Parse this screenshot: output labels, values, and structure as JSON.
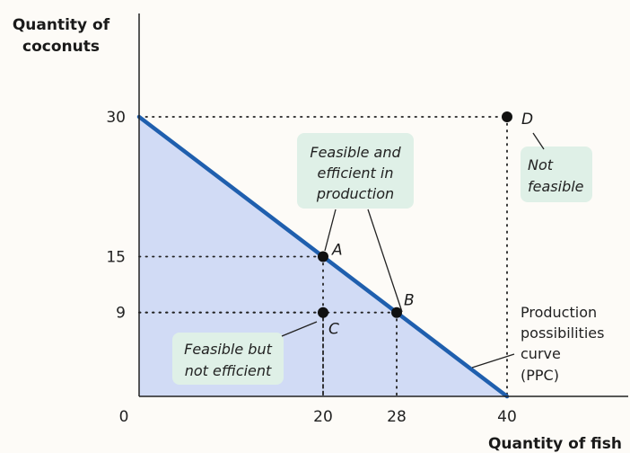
{
  "chart_data": {
    "type": "line",
    "xlabel": "Quantity of fish",
    "ylabel": "Quantity of coconuts",
    "xlim": [
      0,
      40
    ],
    "ylim": [
      0,
      30
    ],
    "origin_label": "0",
    "x_ticks": [
      20,
      28,
      40
    ],
    "y_ticks": [
      9,
      15,
      30
    ],
    "series": [
      {
        "name": "Production possibilities curve (PPC)",
        "x": [
          0,
          40
        ],
        "y": [
          30,
          0
        ]
      }
    ],
    "points": [
      {
        "label": "A",
        "x": 20,
        "y": 15
      },
      {
        "label": "B",
        "x": 28,
        "y": 9
      },
      {
        "label": "C",
        "x": 20,
        "y": 9
      },
      {
        "label": "D",
        "x": 40,
        "y": 30
      }
    ],
    "annotations": {
      "efficient": [
        "Feasible and",
        "efficient in",
        "production"
      ],
      "not_efficient": [
        "Feasible but",
        "not efficient"
      ],
      "not_feasible": [
        "Not",
        "feasible"
      ],
      "ppc": [
        "Production",
        "possibilities",
        "curve",
        "(PPC)"
      ]
    },
    "colors": {
      "curve": "#1f5fae",
      "feasible_region": "#c9d5f5",
      "annotation_box": "#dff0e7"
    }
  }
}
